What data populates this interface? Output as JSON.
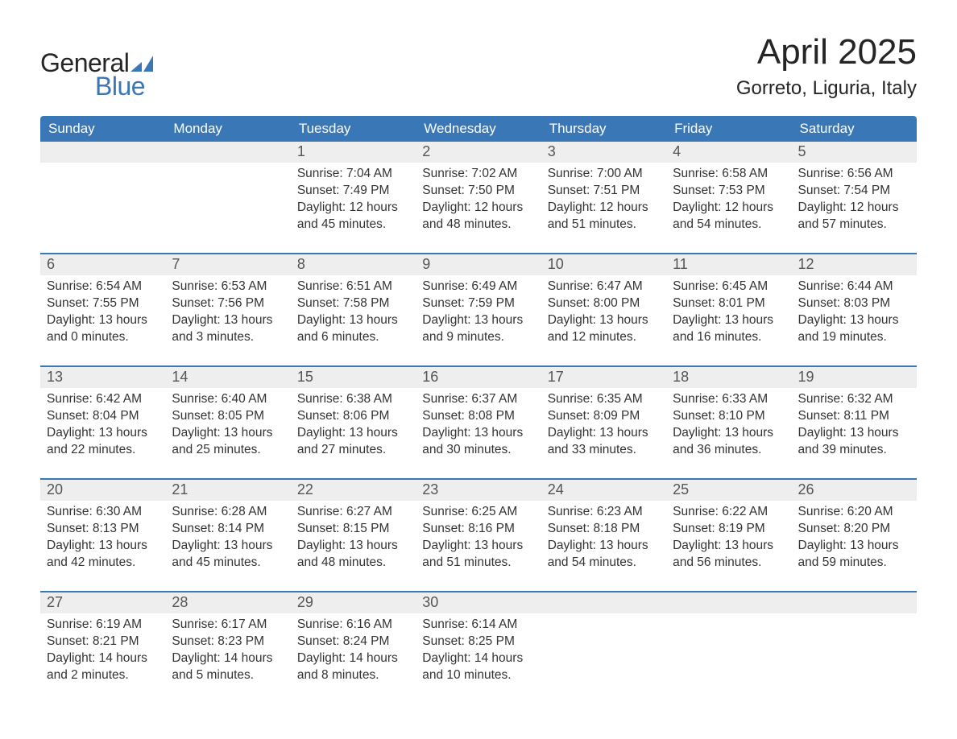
{
  "logo": {
    "word1": "General",
    "word2": "Blue",
    "word1_color": "#252525",
    "word2_color": "#3a77b7",
    "sail_color": "#3a77b7"
  },
  "title": "April 2025",
  "location": "Gorreto, Liguria, Italy",
  "colors": {
    "header_bg": "#3a77b7",
    "header_text": "#ffffff",
    "daynum_bg": "#eeeeee",
    "week_border": "#3a77b7",
    "body_text": "#333333",
    "page_bg": "#ffffff"
  },
  "typography": {
    "title_fontsize": 44,
    "location_fontsize": 24,
    "weekday_fontsize": 17,
    "daynum_fontsize": 18,
    "cell_fontsize": 15.5,
    "font_family": "Arial"
  },
  "layout": {
    "columns": 7,
    "rows": 5,
    "start_day_index": 2
  },
  "weekdays": [
    "Sunday",
    "Monday",
    "Tuesday",
    "Wednesday",
    "Thursday",
    "Friday",
    "Saturday"
  ],
  "labels": {
    "sunrise": "Sunrise: ",
    "sunset": "Sunset: ",
    "daylight": "Daylight: "
  },
  "days": [
    {
      "n": 1,
      "sunrise": "7:04 AM",
      "sunset": "7:49 PM",
      "daylight": "12 hours and 45 minutes."
    },
    {
      "n": 2,
      "sunrise": "7:02 AM",
      "sunset": "7:50 PM",
      "daylight": "12 hours and 48 minutes."
    },
    {
      "n": 3,
      "sunrise": "7:00 AM",
      "sunset": "7:51 PM",
      "daylight": "12 hours and 51 minutes."
    },
    {
      "n": 4,
      "sunrise": "6:58 AM",
      "sunset": "7:53 PM",
      "daylight": "12 hours and 54 minutes."
    },
    {
      "n": 5,
      "sunrise": "6:56 AM",
      "sunset": "7:54 PM",
      "daylight": "12 hours and 57 minutes."
    },
    {
      "n": 6,
      "sunrise": "6:54 AM",
      "sunset": "7:55 PM",
      "daylight": "13 hours and 0 minutes."
    },
    {
      "n": 7,
      "sunrise": "6:53 AM",
      "sunset": "7:56 PM",
      "daylight": "13 hours and 3 minutes."
    },
    {
      "n": 8,
      "sunrise": "6:51 AM",
      "sunset": "7:58 PM",
      "daylight": "13 hours and 6 minutes."
    },
    {
      "n": 9,
      "sunrise": "6:49 AM",
      "sunset": "7:59 PM",
      "daylight": "13 hours and 9 minutes."
    },
    {
      "n": 10,
      "sunrise": "6:47 AM",
      "sunset": "8:00 PM",
      "daylight": "13 hours and 12 minutes."
    },
    {
      "n": 11,
      "sunrise": "6:45 AM",
      "sunset": "8:01 PM",
      "daylight": "13 hours and 16 minutes."
    },
    {
      "n": 12,
      "sunrise": "6:44 AM",
      "sunset": "8:03 PM",
      "daylight": "13 hours and 19 minutes."
    },
    {
      "n": 13,
      "sunrise": "6:42 AM",
      "sunset": "8:04 PM",
      "daylight": "13 hours and 22 minutes."
    },
    {
      "n": 14,
      "sunrise": "6:40 AM",
      "sunset": "8:05 PM",
      "daylight": "13 hours and 25 minutes."
    },
    {
      "n": 15,
      "sunrise": "6:38 AM",
      "sunset": "8:06 PM",
      "daylight": "13 hours and 27 minutes."
    },
    {
      "n": 16,
      "sunrise": "6:37 AM",
      "sunset": "8:08 PM",
      "daylight": "13 hours and 30 minutes."
    },
    {
      "n": 17,
      "sunrise": "6:35 AM",
      "sunset": "8:09 PM",
      "daylight": "13 hours and 33 minutes."
    },
    {
      "n": 18,
      "sunrise": "6:33 AM",
      "sunset": "8:10 PM",
      "daylight": "13 hours and 36 minutes."
    },
    {
      "n": 19,
      "sunrise": "6:32 AM",
      "sunset": "8:11 PM",
      "daylight": "13 hours and 39 minutes."
    },
    {
      "n": 20,
      "sunrise": "6:30 AM",
      "sunset": "8:13 PM",
      "daylight": "13 hours and 42 minutes."
    },
    {
      "n": 21,
      "sunrise": "6:28 AM",
      "sunset": "8:14 PM",
      "daylight": "13 hours and 45 minutes."
    },
    {
      "n": 22,
      "sunrise": "6:27 AM",
      "sunset": "8:15 PM",
      "daylight": "13 hours and 48 minutes."
    },
    {
      "n": 23,
      "sunrise": "6:25 AM",
      "sunset": "8:16 PM",
      "daylight": "13 hours and 51 minutes."
    },
    {
      "n": 24,
      "sunrise": "6:23 AM",
      "sunset": "8:18 PM",
      "daylight": "13 hours and 54 minutes."
    },
    {
      "n": 25,
      "sunrise": "6:22 AM",
      "sunset": "8:19 PM",
      "daylight": "13 hours and 56 minutes."
    },
    {
      "n": 26,
      "sunrise": "6:20 AM",
      "sunset": "8:20 PM",
      "daylight": "13 hours and 59 minutes."
    },
    {
      "n": 27,
      "sunrise": "6:19 AM",
      "sunset": "8:21 PM",
      "daylight": "14 hours and 2 minutes."
    },
    {
      "n": 28,
      "sunrise": "6:17 AM",
      "sunset": "8:23 PM",
      "daylight": "14 hours and 5 minutes."
    },
    {
      "n": 29,
      "sunrise": "6:16 AM",
      "sunset": "8:24 PM",
      "daylight": "14 hours and 8 minutes."
    },
    {
      "n": 30,
      "sunrise": "6:14 AM",
      "sunset": "8:25 PM",
      "daylight": "14 hours and 10 minutes."
    }
  ]
}
